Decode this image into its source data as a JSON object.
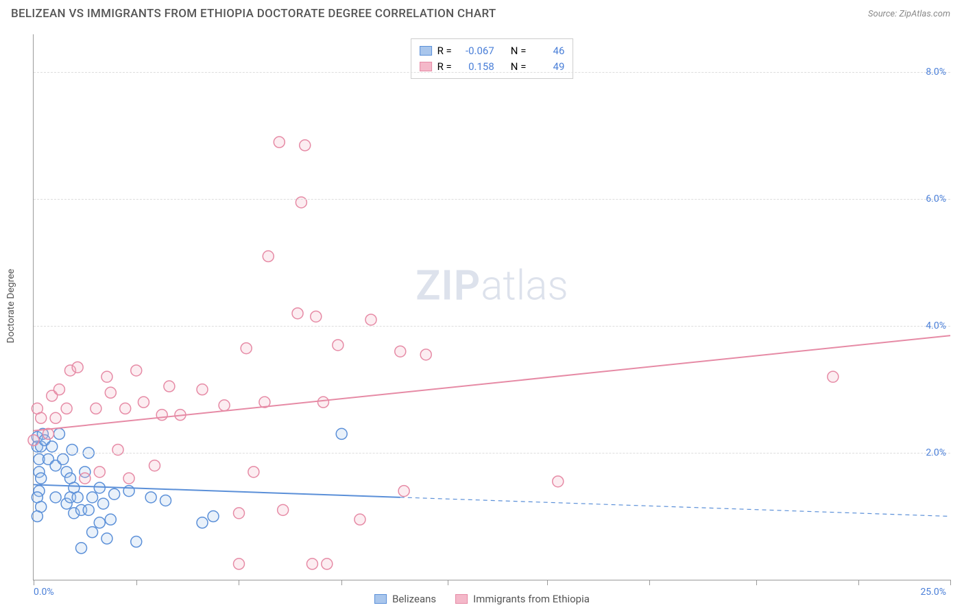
{
  "header": {
    "title": "BELIZEAN VS IMMIGRANTS FROM ETHIOPIA DOCTORATE DEGREE CORRELATION CHART",
    "source_prefix": "Source: ",
    "source": "ZipAtlas.com"
  },
  "watermark": {
    "zip": "ZIP",
    "atlas": "atlas"
  },
  "y_axis_label": "Doctorate Degree",
  "chart": {
    "type": "scatter",
    "background_color": "#ffffff",
    "grid_color": "#dddddd",
    "axis_color": "#999999",
    "xlim": [
      0,
      25
    ],
    "ylim": [
      0,
      8.6
    ],
    "x_left_label": "0.0%",
    "x_right_label": "25.0%",
    "xticks": [
      0,
      2.8,
      5.6,
      8.4,
      11.3,
      14.0,
      16.8,
      19.7,
      22.5,
      25.0
    ],
    "yticks": [
      {
        "v": 2.0,
        "label": "2.0%"
      },
      {
        "v": 4.0,
        "label": "4.0%"
      },
      {
        "v": 6.0,
        "label": "6.0%"
      },
      {
        "v": 8.0,
        "label": "8.0%"
      }
    ],
    "marker_radius": 8,
    "marker_fill_opacity": 0.25,
    "marker_stroke_width": 1.5,
    "trend_line_width": 2,
    "series": [
      {
        "name": "Belizeans",
        "color_stroke": "#5a8fd8",
        "color_fill": "#a9c6ec",
        "R": "-0.067",
        "N": "46",
        "trend": {
          "x1": 0,
          "y1": 1.5,
          "x2_solid": 10.0,
          "y2_solid": 1.3,
          "x2": 25,
          "y2": 1.0
        },
        "points": [
          [
            0.1,
            2.25
          ],
          [
            0.1,
            2.1
          ],
          [
            0.2,
            2.1
          ],
          [
            0.15,
            1.9
          ],
          [
            0.15,
            1.7
          ],
          [
            0.2,
            1.6
          ],
          [
            0.25,
            2.3
          ],
          [
            0.15,
            1.4
          ],
          [
            0.1,
            1.3
          ],
          [
            0.2,
            1.15
          ],
          [
            0.1,
            1.0
          ],
          [
            0.3,
            2.2
          ],
          [
            0.4,
            1.9
          ],
          [
            0.5,
            2.1
          ],
          [
            0.6,
            1.8
          ],
          [
            0.6,
            1.3
          ],
          [
            0.7,
            2.3
          ],
          [
            0.8,
            1.9
          ],
          [
            0.9,
            1.7
          ],
          [
            0.9,
            1.2
          ],
          [
            1.0,
            1.6
          ],
          [
            1.0,
            1.3
          ],
          [
            1.05,
            2.05
          ],
          [
            1.1,
            1.45
          ],
          [
            1.1,
            1.05
          ],
          [
            1.2,
            1.3
          ],
          [
            1.3,
            1.1
          ],
          [
            1.4,
            1.7
          ],
          [
            1.5,
            2.0
          ],
          [
            1.5,
            1.1
          ],
          [
            1.6,
            1.3
          ],
          [
            1.6,
            0.75
          ],
          [
            1.8,
            0.9
          ],
          [
            1.8,
            1.45
          ],
          [
            1.9,
            1.2
          ],
          [
            2.0,
            0.65
          ],
          [
            2.1,
            0.95
          ],
          [
            2.2,
            1.35
          ],
          [
            2.6,
            1.4
          ],
          [
            2.8,
            0.6
          ],
          [
            3.2,
            1.3
          ],
          [
            3.6,
            1.25
          ],
          [
            4.6,
            0.9
          ],
          [
            4.9,
            1.0
          ],
          [
            8.4,
            2.3
          ],
          [
            1.3,
            0.5
          ]
        ]
      },
      {
        "name": "Immigrants from Ethiopia",
        "color_stroke": "#e68aa5",
        "color_fill": "#f4b8c9",
        "R": "0.158",
        "N": "49",
        "trend": {
          "x1": 0,
          "y1": 2.35,
          "x2_solid": 25,
          "y2_solid": 3.85,
          "x2": 25,
          "y2": 3.85
        },
        "points": [
          [
            0.0,
            2.2
          ],
          [
            0.1,
            2.7
          ],
          [
            0.2,
            2.55
          ],
          [
            0.4,
            2.3
          ],
          [
            0.5,
            2.9
          ],
          [
            0.6,
            2.55
          ],
          [
            0.7,
            3.0
          ],
          [
            0.9,
            2.7
          ],
          [
            1.0,
            3.3
          ],
          [
            1.2,
            3.35
          ],
          [
            1.4,
            1.6
          ],
          [
            1.7,
            2.7
          ],
          [
            1.8,
            1.7
          ],
          [
            2.0,
            3.2
          ],
          [
            2.1,
            2.95
          ],
          [
            2.3,
            2.05
          ],
          [
            2.5,
            2.7
          ],
          [
            2.6,
            1.6
          ],
          [
            2.8,
            3.3
          ],
          [
            3.0,
            2.8
          ],
          [
            3.3,
            1.8
          ],
          [
            3.5,
            2.6
          ],
          [
            3.7,
            3.05
          ],
          [
            4.0,
            2.6
          ],
          [
            4.6,
            3.0
          ],
          [
            5.2,
            2.75
          ],
          [
            5.6,
            1.05
          ],
          [
            5.6,
            0.25
          ],
          [
            5.8,
            3.65
          ],
          [
            6.0,
            1.7
          ],
          [
            6.3,
            2.8
          ],
          [
            6.4,
            5.1
          ],
          [
            6.7,
            6.9
          ],
          [
            6.8,
            1.1
          ],
          [
            7.2,
            4.2
          ],
          [
            7.3,
            5.95
          ],
          [
            7.4,
            6.85
          ],
          [
            7.6,
            0.25
          ],
          [
            7.7,
            4.15
          ],
          [
            7.9,
            2.8
          ],
          [
            8.0,
            0.25
          ],
          [
            8.3,
            3.7
          ],
          [
            9.2,
            4.1
          ],
          [
            10.0,
            3.6
          ],
          [
            10.1,
            1.4
          ],
          [
            10.7,
            3.55
          ],
          [
            14.3,
            1.55
          ],
          [
            21.8,
            3.2
          ],
          [
            8.9,
            0.95
          ]
        ]
      }
    ]
  },
  "legend_top": {
    "R_prefix": "R =",
    "N_prefix": "N ="
  },
  "legend_bottom": [
    {
      "label": "Belizeans",
      "stroke": "#5a8fd8",
      "fill": "#a9c6ec"
    },
    {
      "label": "Immigrants from Ethiopia",
      "stroke": "#e68aa5",
      "fill": "#f4b8c9"
    }
  ]
}
